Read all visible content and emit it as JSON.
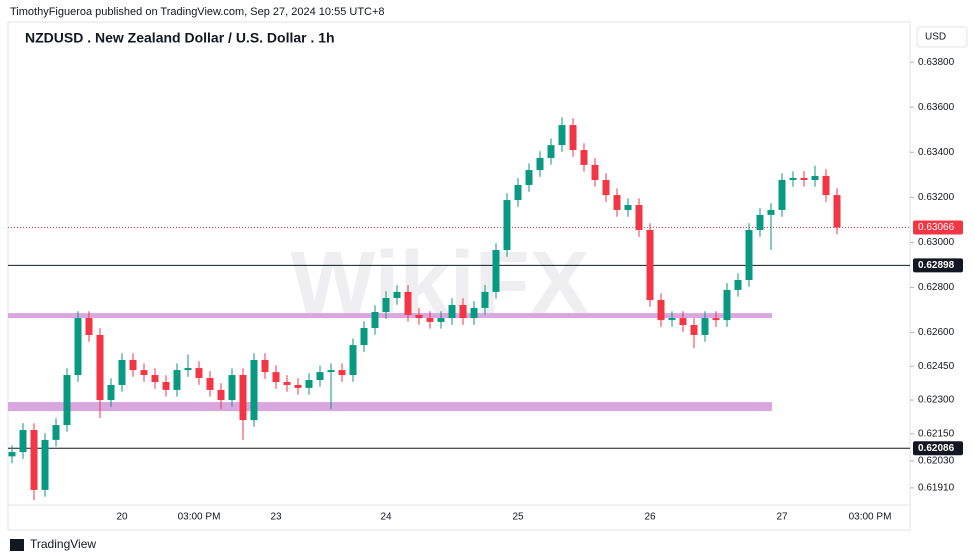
{
  "header": {
    "publisher": "TimothyFigueroa published on TradingView.com, Sep 27, 2024 10:55 UTC+8",
    "currency": "USD",
    "footer": "TradingView",
    "watermark": "WikiFX"
  },
  "chart_data": {
    "type": "candlestick",
    "title": "NZDUSD . New Zealand Dollar / U.S. Dollar . 1h",
    "up_color": "#089981",
    "down_color": "#f23645",
    "categories": [
      null,
      null,
      null,
      null,
      null,
      null,
      null,
      null,
      null,
      null,
      "20",
      null,
      null,
      null,
      null,
      null,
      null,
      "03:00 PM",
      null,
      null,
      null,
      null,
      null,
      null,
      "23",
      null,
      null,
      null,
      null,
      null,
      null,
      null,
      null,
      null,
      "24",
      null,
      null,
      null,
      null,
      null,
      null,
      null,
      null,
      null,
      null,
      null,
      "25",
      null,
      null,
      null,
      null,
      null,
      null,
      null,
      null,
      null,
      null,
      null,
      "26",
      null,
      null,
      null,
      null,
      null,
      null,
      null,
      null,
      null,
      null,
      null,
      "27",
      null,
      null,
      null,
      null,
      null,
      null,
      null,
      "03:00 PM"
    ],
    "open": [
      0.6205,
      0.62069,
      0.62167,
      0.61901,
      0.62123,
      0.62189,
      0.62411,
      0.62664,
      0.62589,
      0.623,
      0.62367,
      0.62478,
      0.62433,
      0.62411,
      0.6238,
      0.62345,
      0.62433,
      0.62442,
      0.62398,
      0.62345,
      0.623,
      0.62411,
      0.62211,
      0.62478,
      0.62424,
      0.6238,
      0.62367,
      0.62354,
      0.62389,
      0.62424,
      0.62433,
      0.62411,
      0.62544,
      0.6262,
      0.62691,
      0.62753,
      0.6278,
      0.62678,
      0.62664,
      0.62647,
      0.62664,
      0.62722,
      0.62664,
      0.62709,
      0.6278,
      0.62966,
      0.63188,
      0.63255,
      0.63321,
      0.63375,
      0.63432,
      0.63521,
      0.6341,
      0.63344,
      0.63277,
      0.6321,
      0.63144,
      0.63166,
      0.63055,
      0.62744,
      0.62655,
      0.62664,
      0.62633,
      0.62589,
      0.62664,
      0.62655,
      0.62789,
      0.62833,
      0.63055,
      0.63122,
      0.63144,
      0.63277,
      0.63286,
      0.63277,
      0.63295,
      0.6321,
      null,
      null,
      null
    ],
    "high": [
      0.62099,
      0.62197,
      0.62197,
      0.62153,
      0.62219,
      0.62441,
      0.62694,
      0.62694,
      0.62619,
      0.62397,
      0.62508,
      0.62508,
      0.62463,
      0.62441,
      0.6241,
      0.62463,
      0.62502,
      0.62472,
      0.62428,
      0.62375,
      0.62441,
      0.62441,
      0.62508,
      0.62508,
      0.62454,
      0.6241,
      0.62397,
      0.62419,
      0.62454,
      0.62463,
      0.62463,
      0.62574,
      0.6265,
      0.62721,
      0.62783,
      0.6281,
      0.6281,
      0.62708,
      0.62694,
      0.62694,
      0.62752,
      0.62752,
      0.62739,
      0.6281,
      0.62996,
      0.63218,
      0.63285,
      0.63351,
      0.63405,
      0.63462,
      0.63555,
      0.63551,
      0.6344,
      0.63374,
      0.63307,
      0.6324,
      0.63196,
      0.63196,
      0.63085,
      0.62774,
      0.62694,
      0.62694,
      0.62663,
      0.62694,
      0.62694,
      0.62819,
      0.62863,
      0.63085,
      0.63152,
      0.63174,
      0.63307,
      0.63316,
      0.63316,
      0.6334,
      0.63325,
      0.6324,
      null,
      null,
      null
    ],
    "low": [
      0.6202,
      0.62039,
      0.61856,
      0.61871,
      0.62093,
      0.62159,
      0.62381,
      0.62559,
      0.6222,
      0.6227,
      0.62337,
      0.62403,
      0.62381,
      0.6235,
      0.62315,
      0.62315,
      0.62403,
      0.62368,
      0.62315,
      0.6226,
      0.6227,
      0.62123,
      0.62181,
      0.62394,
      0.6235,
      0.62337,
      0.62324,
      0.62324,
      0.62359,
      0.6226,
      0.62381,
      0.62381,
      0.62514,
      0.6259,
      0.62661,
      0.62723,
      0.62648,
      0.62634,
      0.62617,
      0.62617,
      0.62634,
      0.62634,
      0.62634,
      0.62679,
      0.6275,
      0.62936,
      0.63158,
      0.63225,
      0.63291,
      0.63345,
      0.63402,
      0.6338,
      0.63314,
      0.63247,
      0.6318,
      0.63114,
      0.63114,
      0.63025,
      0.62714,
      0.62625,
      0.62625,
      0.62603,
      0.6253,
      0.62559,
      0.62625,
      0.62625,
      0.62759,
      0.62803,
      0.63025,
      0.62966,
      0.63114,
      0.63247,
      0.63247,
      0.63247,
      0.6318,
      0.63036,
      null,
      null,
      null
    ],
    "close": [
      0.62069,
      0.62167,
      0.61901,
      0.62123,
      0.62189,
      0.62411,
      0.62664,
      0.62589,
      0.623,
      0.62367,
      0.62478,
      0.62433,
      0.62411,
      0.6238,
      0.62345,
      0.62433,
      0.62442,
      0.62398,
      0.62345,
      0.623,
      0.62411,
      0.62211,
      0.62478,
      0.62424,
      0.6238,
      0.62367,
      0.62354,
      0.62389,
      0.62424,
      0.62433,
      0.62411,
      0.62544,
      0.6262,
      0.62691,
      0.62753,
      0.6278,
      0.62678,
      0.62664,
      0.62647,
      0.62664,
      0.62722,
      0.62664,
      0.62709,
      0.6278,
      0.62966,
      0.63188,
      0.63255,
      0.63321,
      0.63375,
      0.63432,
      0.63521,
      0.6341,
      0.63344,
      0.63277,
      0.6321,
      0.63144,
      0.63166,
      0.63055,
      0.62744,
      0.62655,
      0.62664,
      0.62633,
      0.62589,
      0.62664,
      0.62655,
      0.62789,
      0.62833,
      0.63055,
      0.63122,
      0.63144,
      0.63277,
      0.63286,
      0.63277,
      0.63295,
      0.6321,
      0.63066,
      null,
      null,
      null
    ],
    "ylim": [
      0.61834,
      0.64014
    ],
    "yticks": [
      {
        "value": 0.638,
        "label": "0.63800"
      },
      {
        "value": 0.636,
        "label": "0.63600"
      },
      {
        "value": 0.634,
        "label": "0.63400"
      },
      {
        "value": 0.632,
        "label": "0.63200"
      },
      {
        "value": 0.63,
        "label": "0.63000"
      },
      {
        "value": 0.628,
        "label": "0.62800"
      },
      {
        "value": 0.626,
        "label": "0.62600"
      },
      {
        "value": 0.6245,
        "label": "0.62450"
      },
      {
        "value": 0.623,
        "label": "0.62300"
      },
      {
        "value": 0.6215,
        "label": "0.62150"
      },
      {
        "value": 0.6203,
        "label": "0.62030"
      },
      {
        "value": 0.6191,
        "label": "0.61910"
      }
    ],
    "last_price": {
      "value": 0.63066,
      "label": "0.63066",
      "color": "#f23645"
    },
    "levels": [
      {
        "value": 0.62898,
        "label": "0.62898"
      },
      {
        "value": 0.62086,
        "label": "0.62086"
      }
    ],
    "zones": [
      {
        "low": 0.62664,
        "high": 0.62686,
        "color": "#d9a6e0"
      },
      {
        "low": 0.62251,
        "high": 0.62291,
        "color": "#d9a6e0"
      }
    ]
  }
}
